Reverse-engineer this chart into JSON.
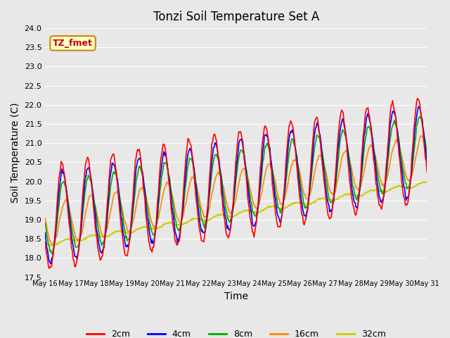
{
  "title": "Tonzi Soil Temperature Set A",
  "xlabel": "Time",
  "ylabel": "Soil Temperature (C)",
  "ylim": [
    17.5,
    24.0
  ],
  "background_color": "#e8e8e8",
  "annotation_text": "TZ_fmet",
  "annotation_bg": "#ffffcc",
  "annotation_border": "#cc8800",
  "legend_entries": [
    "2cm",
    "4cm",
    "8cm",
    "16cm",
    "32cm"
  ],
  "line_colors": [
    "#ff0000",
    "#0000ff",
    "#00aa00",
    "#ff8800",
    "#cccc00"
  ],
  "line_widths": [
    1.2,
    1.2,
    1.2,
    1.2,
    1.5
  ],
  "x_tick_labels": [
    "May 16",
    "May 17",
    "May 18",
    "May 19",
    "May 20",
    "May 21",
    "May 22",
    "May 23",
    "May 24",
    "May 25",
    "May 26",
    "May 27",
    "May 28",
    "May 29",
    "May 30",
    "May 31"
  ],
  "num_points": 480
}
